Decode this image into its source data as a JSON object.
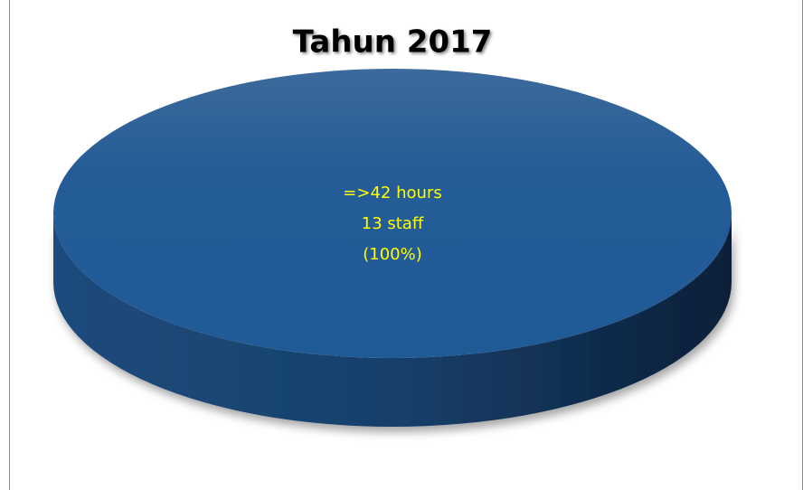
{
  "chart_data": {
    "type": "pie",
    "title": "Tahun 2017",
    "categories": [
      "=>42 hours"
    ],
    "values": [
      13
    ],
    "value_labels": [
      "13 staff"
    ],
    "percentages": [
      100
    ],
    "percentage_labels": [
      "(100%)"
    ],
    "colors": [
      "#245d98"
    ],
    "label_color": "#ffff00",
    "three_d": true
  }
}
